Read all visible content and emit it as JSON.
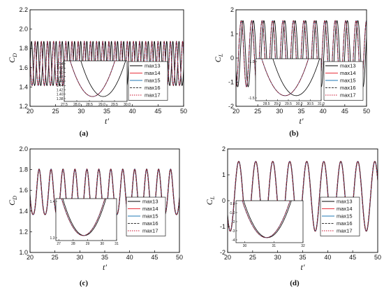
{
  "chart_data": [
    {
      "id": "a",
      "type": "line",
      "caption": "(a)",
      "ylabel": "C_D",
      "xlabel": "t′",
      "xlim": [
        20,
        50
      ],
      "ylim": [
        1.2,
        2.2
      ],
      "xticks": [
        "20",
        "25",
        "30",
        "35",
        "40",
        "45",
        "50"
      ],
      "yticks": [
        "1.2",
        "1.4",
        "1.6",
        "1.8",
        "2.0",
        "2.2"
      ],
      "signal": {
        "mean": 1.62,
        "amp": 0.23,
        "period": 1.2,
        "phase_b": 28.1,
        "phase_a": 28.8
      },
      "series": [
        {
          "name": "max13",
          "color": "#000000",
          "dash": "",
          "group": "b"
        },
        {
          "name": "max14",
          "color": "#e8323c",
          "dash": "",
          "group": "a"
        },
        {
          "name": "max15",
          "color": "#1f77b4",
          "dash": "",
          "group": "a"
        },
        {
          "name": "max16",
          "color": "#333333",
          "dash": "3,1.5",
          "group": "a"
        },
        {
          "name": "max17",
          "color": "#c8102e",
          "dash": "1.5,1.5",
          "group": "a"
        }
      ],
      "highlight_box": {
        "x": [
          27.3,
          30.0
        ],
        "y": [
          1.37,
          1.52
        ]
      },
      "inset": {
        "xlim": [
          27.5,
          30.0
        ],
        "ylim": [
          1.38,
          1.54
        ],
        "xticks": [
          "27.5",
          "28.0",
          "28.5",
          "29.0",
          "29.5",
          "30.0"
        ],
        "yticks": [
          "1.54",
          "1.52",
          "1.50",
          "1.48",
          "1.46",
          "1.44",
          "1.42",
          "1.40",
          "1.38"
        ]
      }
    },
    {
      "id": "b",
      "type": "line",
      "caption": "(b)",
      "ylabel": "C_L",
      "xlabel": "t′",
      "xlim": [
        20,
        50
      ],
      "ylim": [
        -2,
        2
      ],
      "xticks": [
        "20",
        "25",
        "30",
        "35",
        "40",
        "45",
        "50"
      ],
      "yticks": [
        "-2",
        "-1",
        "0",
        "1",
        "2"
      ],
      "signal": {
        "mean": 0.18,
        "amp": 1.37,
        "period": 2.4,
        "phase_a": 29.6,
        "phase_b": 30.0
      },
      "series": [
        {
          "name": "max13",
          "color": "#000000",
          "dash": "",
          "group": "b"
        },
        {
          "name": "max14",
          "color": "#e8323c",
          "dash": "",
          "group": "a"
        },
        {
          "name": "max15",
          "color": "#1f77b4",
          "dash": "",
          "group": "a"
        },
        {
          "name": "max16",
          "color": "#333333",
          "dash": "3,1.5",
          "group": "a"
        },
        {
          "name": "max17",
          "color": "#c8102e",
          "dash": "1.5,1.5",
          "group": "a"
        }
      ],
      "highlight_box": {
        "x": [
          29.0,
          31.0
        ],
        "y": [
          -1.35,
          -0.7
        ]
      },
      "inset": {
        "xlim": [
          28.0,
          31.0
        ],
        "ylim": [
          -1.55,
          -0.9
        ],
        "xticks": [
          "28.5",
          "29.0",
          "29.5",
          "30.0",
          "30.5",
          "31.0"
        ],
        "yticks": [
          "-1.0",
          "-1.5"
        ]
      }
    },
    {
      "id": "c",
      "type": "line",
      "caption": "(c)",
      "ylabel": "C_D",
      "xlabel": "t′",
      "xlim": [
        20,
        50
      ],
      "ylim": [
        1.0,
        2.0
      ],
      "xticks": [
        "20",
        "25",
        "30",
        "35",
        "40",
        "45",
        "50"
      ],
      "yticks": [
        "1.0",
        "1.2",
        "1.4",
        "1.6",
        "1.8",
        "2.0"
      ],
      "signal": {
        "mean": 1.56,
        "amp": 0.22,
        "period": 2.4,
        "phase_a": 27.8,
        "phase_b": 27.85
      },
      "series": [
        {
          "name": "max13",
          "color": "#000000",
          "dash": "",
          "group": "b"
        },
        {
          "name": "max14",
          "color": "#e8323c",
          "dash": "",
          "group": "a"
        },
        {
          "name": "max15",
          "color": "#1f77b4",
          "dash": "",
          "group": "a"
        },
        {
          "name": "max16",
          "color": "#333333",
          "dash": "3,1.5",
          "group": "a"
        },
        {
          "name": "max17",
          "color": "#c8102e",
          "dash": "1.5,1.5",
          "group": "a"
        }
      ],
      "highlight_box": {
        "x": [
          27.0,
          31.0
        ],
        "y": [
          1.3,
          1.45
        ]
      },
      "inset": {
        "xlim": [
          26.8,
          31.0
        ],
        "ylim": [
          1.25,
          1.48
        ],
        "xticks": [
          "27",
          "28",
          "29",
          "30",
          "31"
        ],
        "yticks": [
          "1.4",
          "1.3"
        ]
      }
    },
    {
      "id": "d",
      "type": "line",
      "caption": "(d)",
      "ylabel": "C_L",
      "xlabel": "t′",
      "xlim": [
        20,
        50
      ],
      "ylim": [
        -2,
        2
      ],
      "xticks": [
        "20",
        "25",
        "30",
        "35",
        "40",
        "45",
        "50"
      ],
      "yticks": [
        "-2",
        "-1",
        "0",
        "1",
        "2"
      ],
      "signal": {
        "mean": 0.17,
        "amp": 1.35,
        "period": 3.4,
        "phase_a": 30.7,
        "phase_b": 30.75
      },
      "series": [
        {
          "name": "max13",
          "color": "#000000",
          "dash": "",
          "group": "b"
        },
        {
          "name": "max14",
          "color": "#e8323c",
          "dash": "",
          "group": "a"
        },
        {
          "name": "max15",
          "color": "#1f77b4",
          "dash": "",
          "group": "a"
        },
        {
          "name": "max16",
          "color": "#333333",
          "dash": "3,1.5",
          "group": "a"
        },
        {
          "name": "max17",
          "color": "#c8102e",
          "dash": "1.5,1.5",
          "group": "a"
        }
      ],
      "highlight_box": {
        "x": [
          29.4,
          32.0
        ],
        "y": [
          -1.4,
          -0.05
        ]
      },
      "inset": {
        "xlim": [
          29.7,
          32.0
        ],
        "ylim": [
          -4.6,
          0.1
        ],
        "xticks": [
          "30",
          "31",
          "32"
        ],
        "yticks": [
          "0.0",
          "-1.0",
          "-2",
          "-3",
          "-4"
        ]
      }
    }
  ]
}
